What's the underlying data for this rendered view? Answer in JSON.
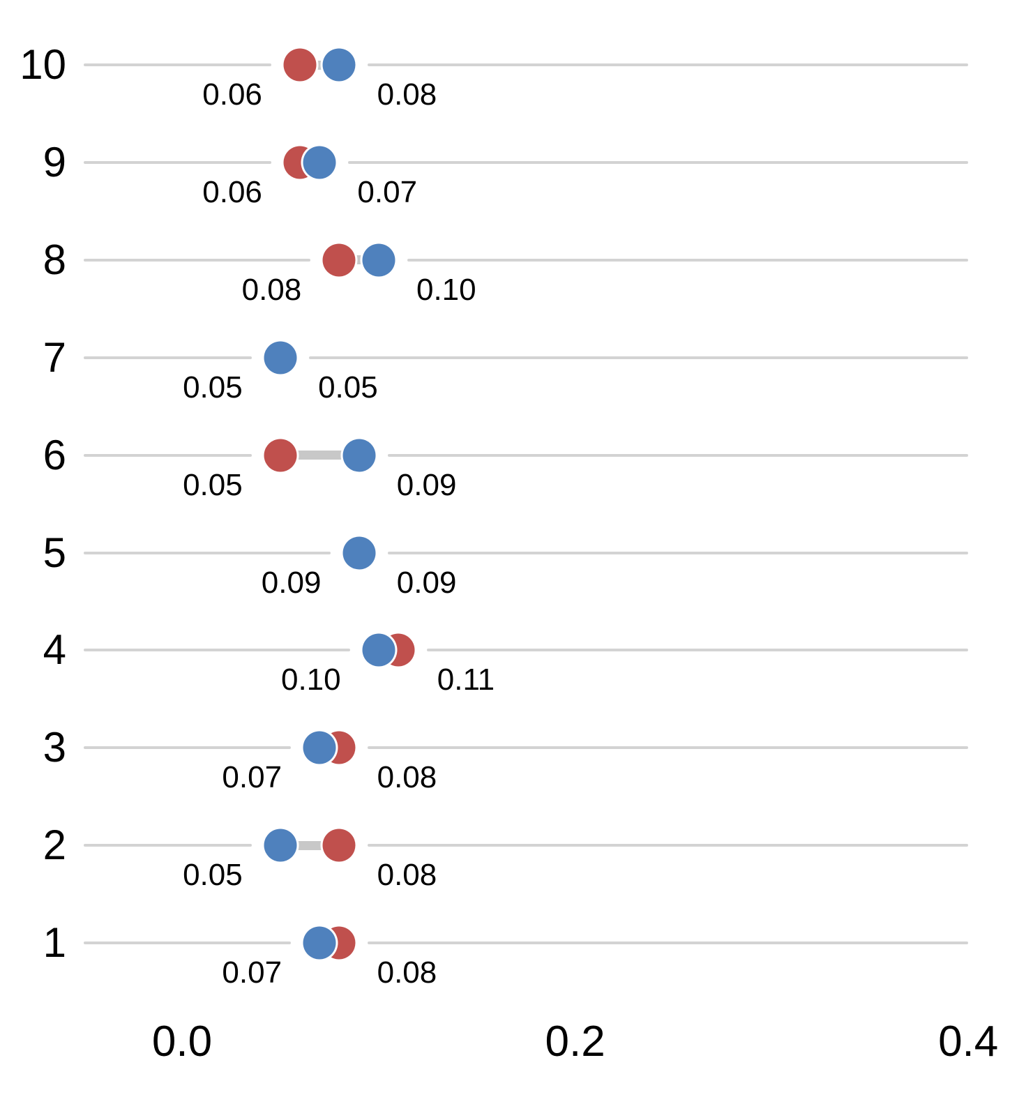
{
  "chart_data": {
    "type": "scatter",
    "subtype": "dumbbell-dot-plot",
    "orientation": "horizontal",
    "title": "",
    "xlabel": "",
    "ylabel": "",
    "grid": "per-row horizontal gray lines",
    "legend": "none",
    "x_axis": {
      "ticks": [
        "0.0",
        "0.2",
        "0.4"
      ],
      "tick_values": [
        0.0,
        0.2,
        0.4
      ],
      "range": [
        -0.05,
        0.4
      ]
    },
    "categories": [
      "10",
      "9",
      "8",
      "7",
      "6",
      "5",
      "4",
      "3",
      "2",
      "1"
    ],
    "series": [
      {
        "name": "red-series",
        "color": "#c0504d",
        "values": [
          0.06,
          0.06,
          0.08,
          0.05,
          0.05,
          0.09,
          0.11,
          0.08,
          0.08,
          0.08
        ]
      },
      {
        "name": "blue-series",
        "color": "#4f81bd",
        "values": [
          0.08,
          0.07,
          0.1,
          0.05,
          0.09,
          0.09,
          0.1,
          0.07,
          0.05,
          0.07
        ]
      }
    ],
    "point_labels": [
      {
        "left": "0.06",
        "right": "0.08"
      },
      {
        "left": "0.06",
        "right": "0.07"
      },
      {
        "left": "0.08",
        "right": "0.10"
      },
      {
        "left": "0.05",
        "right": "0.05"
      },
      {
        "left": "0.05",
        "right": "0.09"
      },
      {
        "left": "0.09",
        "right": "0.09"
      },
      {
        "left": "0.10",
        "right": "0.11"
      },
      {
        "left": "0.07",
        "right": "0.08"
      },
      {
        "left": "0.05",
        "right": "0.08"
      },
      {
        "left": "0.07",
        "right": "0.08"
      }
    ],
    "colors": {
      "red": "#c0504d",
      "blue": "#4f81bd",
      "row_line": "#d3d3d3",
      "range_bar": "#c8c8c8",
      "text": "#000000",
      "background": "#ffffff"
    }
  }
}
